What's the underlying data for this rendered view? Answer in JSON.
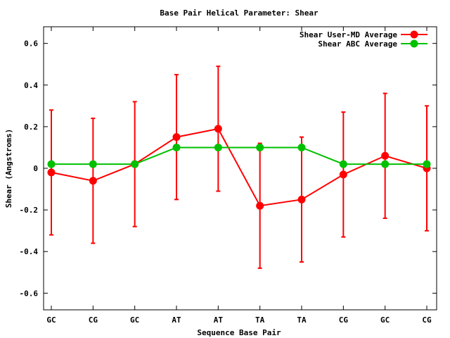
{
  "chart_data": {
    "type": "line",
    "title": "Base Pair Helical Parameter: Shear",
    "xlabel": "Sequence Base Pair",
    "ylabel": "Shear (Angstroms)",
    "categories": [
      "GC",
      "CG",
      "GC",
      "AT",
      "AT",
      "TA",
      "TA",
      "CG",
      "GC",
      "CG"
    ],
    "ylim": [
      -0.68,
      0.68
    ],
    "yticks": [
      -0.6,
      -0.4,
      -0.2,
      0,
      0.2,
      0.4,
      0.6
    ],
    "ytick_labels": [
      "-0.6",
      "-0.4",
      "-0.2",
      "0",
      "0.2",
      "0.4",
      "0.6"
    ],
    "grid": false,
    "legend_position": "top-right",
    "series": [
      {
        "name": "Shear User-MD Average",
        "color": "#ff0000",
        "values": [
          -0.02,
          -0.06,
          0.02,
          0.15,
          0.19,
          -0.18,
          -0.15,
          -0.03,
          0.06,
          0.0
        ],
        "error_low": [
          -0.32,
          -0.36,
          -0.28,
          -0.15,
          -0.11,
          -0.48,
          -0.45,
          -0.33,
          -0.24,
          -0.3
        ],
        "error_high": [
          0.28,
          0.24,
          0.32,
          0.45,
          0.49,
          0.12,
          0.15,
          0.27,
          0.36,
          0.3
        ]
      },
      {
        "name": "Shear ABC Average",
        "color": "#00c000",
        "values": [
          0.02,
          0.02,
          0.02,
          0.1,
          0.1,
          0.1,
          0.1,
          0.02,
          0.02,
          0.02
        ]
      }
    ]
  }
}
